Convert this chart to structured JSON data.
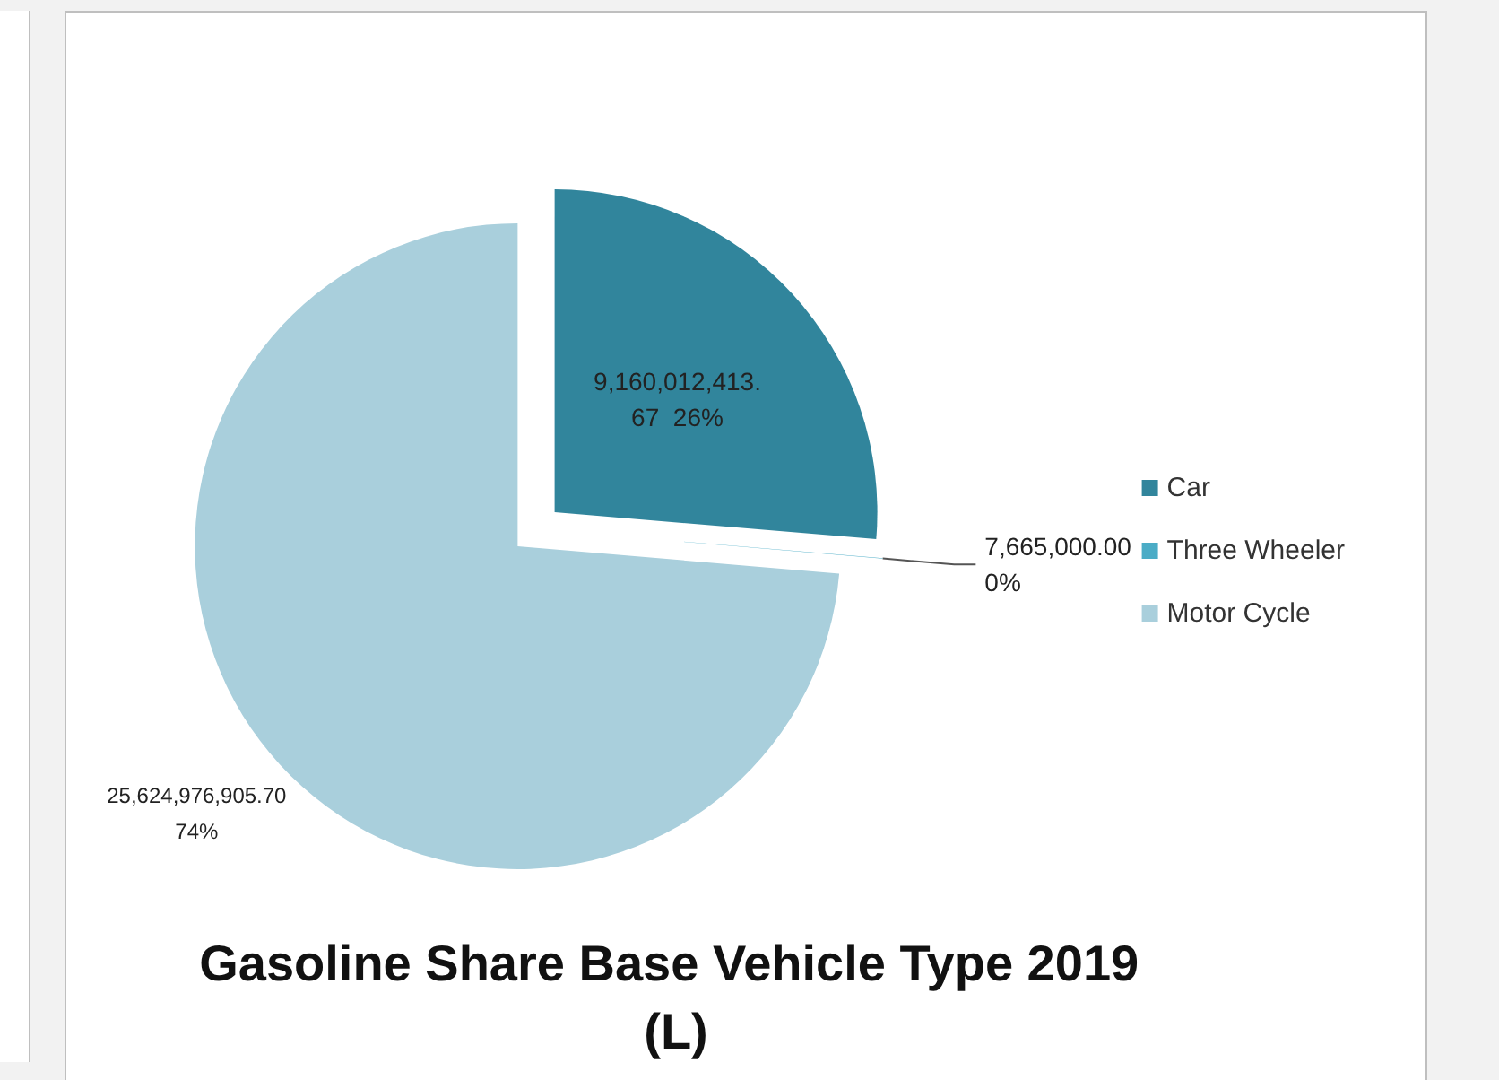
{
  "chart_data": {
    "type": "pie",
    "title": "Gasoline Share Base Vehicle Type 2019 (L)",
    "categories": [
      "Car",
      "Three Wheeler",
      "Motor Cycle"
    ],
    "values": [
      9160012413.67,
      7665000.0,
      25624976905.7
    ],
    "colors": [
      "#31859c",
      "#4bacc6",
      "#a9cfdc"
    ],
    "value_labels": [
      "9,160,012,413.67 26%",
      "7,665,000.00 0%",
      "25,624,976,905.70 74%"
    ],
    "legend": "right"
  }
}
